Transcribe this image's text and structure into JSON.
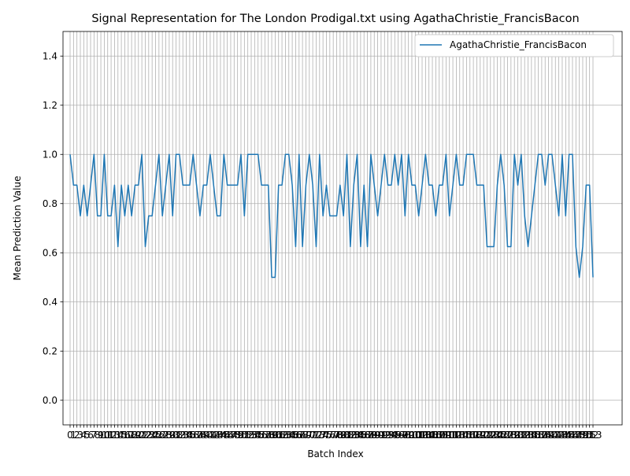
{
  "chart_data": {
    "type": "line",
    "title": "Signal Representation for The London Prodigal.txt using AgathaChristie_FrancisBacon",
    "xlabel": "Batch Index",
    "ylabel": "Mean Prediction Value",
    "xlim": [
      0,
      153
    ],
    "ylim": [
      -0.1,
      1.5
    ],
    "yticks": [
      0.0,
      0.2,
      0.4,
      0.6,
      0.8,
      1.0,
      1.2,
      1.4
    ],
    "ytick_labels": [
      "0.0",
      "0.2",
      "0.4",
      "0.6",
      "0.8",
      "1.0",
      "1.2",
      "1.4"
    ],
    "grid": true,
    "legend": "top-right",
    "series": [
      {
        "name": "AgathaChristie_FrancisBacon",
        "color": "#1f77b4",
        "values": [
          1.0,
          0.875,
          0.875,
          0.75,
          0.875,
          0.75,
          0.875,
          1.0,
          0.75,
          0.75,
          1.0,
          0.75,
          0.75,
          0.875,
          0.625,
          0.875,
          0.75,
          0.875,
          0.75,
          0.875,
          0.875,
          1.0,
          0.625,
          0.75,
          0.75,
          0.875,
          1.0,
          0.75,
          0.875,
          1.0,
          0.75,
          1.0,
          1.0,
          0.875,
          0.875,
          0.875,
          1.0,
          0.875,
          0.75,
          0.875,
          0.875,
          1.0,
          0.875,
          0.75,
          0.75,
          1.0,
          0.875,
          0.875,
          0.875,
          0.875,
          1.0,
          0.75,
          1.0,
          1.0,
          1.0,
          1.0,
          0.875,
          0.875,
          0.875,
          0.5,
          0.5,
          0.875,
          0.875,
          1.0,
          1.0,
          0.875,
          0.625,
          1.0,
          0.625,
          0.875,
          1.0,
          0.875,
          0.625,
          1.0,
          0.75,
          0.875,
          0.75,
          0.75,
          0.75,
          0.875,
          0.75,
          1.0,
          0.625,
          0.875,
          1.0,
          0.625,
          0.875,
          0.625,
          1.0,
          0.875,
          0.75,
          0.875,
          1.0,
          0.875,
          0.875,
          1.0,
          0.875,
          1.0,
          0.75,
          1.0,
          0.875,
          0.875,
          0.75,
          0.875,
          1.0,
          0.875,
          0.875,
          0.75,
          0.875,
          0.875,
          1.0,
          0.75,
          0.875,
          1.0,
          0.875,
          0.875,
          1.0,
          1.0,
          1.0,
          0.875,
          0.875,
          0.875,
          0.625,
          0.625,
          0.625,
          0.875,
          1.0,
          0.875,
          0.625,
          0.625,
          1.0,
          0.875,
          1.0,
          0.75,
          0.625,
          0.75,
          0.875,
          1.0,
          1.0,
          0.875,
          1.0,
          1.0,
          0.875,
          0.75,
          1.0,
          0.75,
          1.0,
          1.0,
          0.625,
          0.5,
          0.625,
          0.875,
          0.875,
          0.5
        ]
      }
    ]
  }
}
